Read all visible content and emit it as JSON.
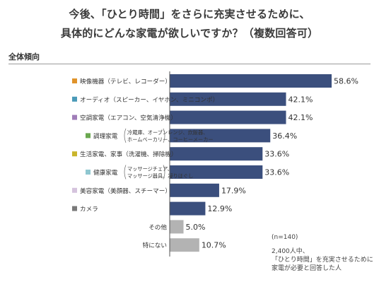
{
  "title_line1": "今後、「ひとり時間」をさらに充実させるために、",
  "title_line2": "具体的にどんな家電が欲しいですか？（複数回答可）",
  "section_label": "全体傾向",
  "note": {
    "n": "(n=140)",
    "lines": [
      "2,400人中、",
      "「ひとり時間」を充実させるために",
      "家電が必要と回答した人"
    ]
  },
  "chart_data": {
    "type": "bar",
    "orientation": "horizontal",
    "unit": "%",
    "categories": [
      {
        "label": "映像機器（テレビ、レコーダー）",
        "sub": [],
        "marker": "#e0932a",
        "bar": "#3b4f7d"
      },
      {
        "label": "オーディオ（スピーカー、イヤホン、ミニコンポ）",
        "sub": [],
        "marker": "#4a9ab8",
        "bar": "#3b4f7d"
      },
      {
        "label": "空調家電（エアコン、空気清浄機）",
        "sub": [],
        "marker": "#a07db8",
        "bar": "#3b4f7d"
      },
      {
        "label": "調理家電",
        "sub": [
          "冷蔵庫、オーブンレンジ、炊飯器、",
          "ホームベーカリー、コーヒーメーカー"
        ],
        "marker": "#6aa84f",
        "bar": "#3b4f7d"
      },
      {
        "label": "生活家電、家事（洗濯機、掃除機）",
        "sub": [],
        "marker": "#c9b52c",
        "bar": "#3b4f7d"
      },
      {
        "label": "健康家電",
        "sub": [
          "マッサージチェア、",
          "マッサージ器具、凝りほぐし"
        ],
        "marker": "#8fc7d0",
        "bar": "#3b4f7d"
      },
      {
        "label": "美容家電（美顔器、スチーマー）",
        "sub": [],
        "marker": "#d5c3dd",
        "bar": "#3b4f7d"
      },
      {
        "label": "カメラ",
        "sub": [],
        "marker": "#7a7a7a",
        "bar": "#3b4f7d"
      },
      {
        "label": "その他",
        "sub": [],
        "marker": "",
        "bar": "#b3b3b3"
      },
      {
        "label": "特にない",
        "sub": [],
        "marker": "",
        "bar": "#b3b3b3"
      }
    ],
    "values": [
      58.6,
      42.1,
      42.1,
      36.4,
      33.6,
      33.6,
      17.9,
      12.9,
      5.0,
      10.7
    ],
    "value_labels": [
      "58.6%",
      "42.1%",
      "42.1%",
      "36.4%",
      "33.6%",
      "33.6%",
      "17.9%",
      "12.9%",
      "5.0%",
      "10.7%"
    ],
    "xlim": [
      0,
      58.6
    ],
    "grid": false,
    "legend": "none"
  }
}
